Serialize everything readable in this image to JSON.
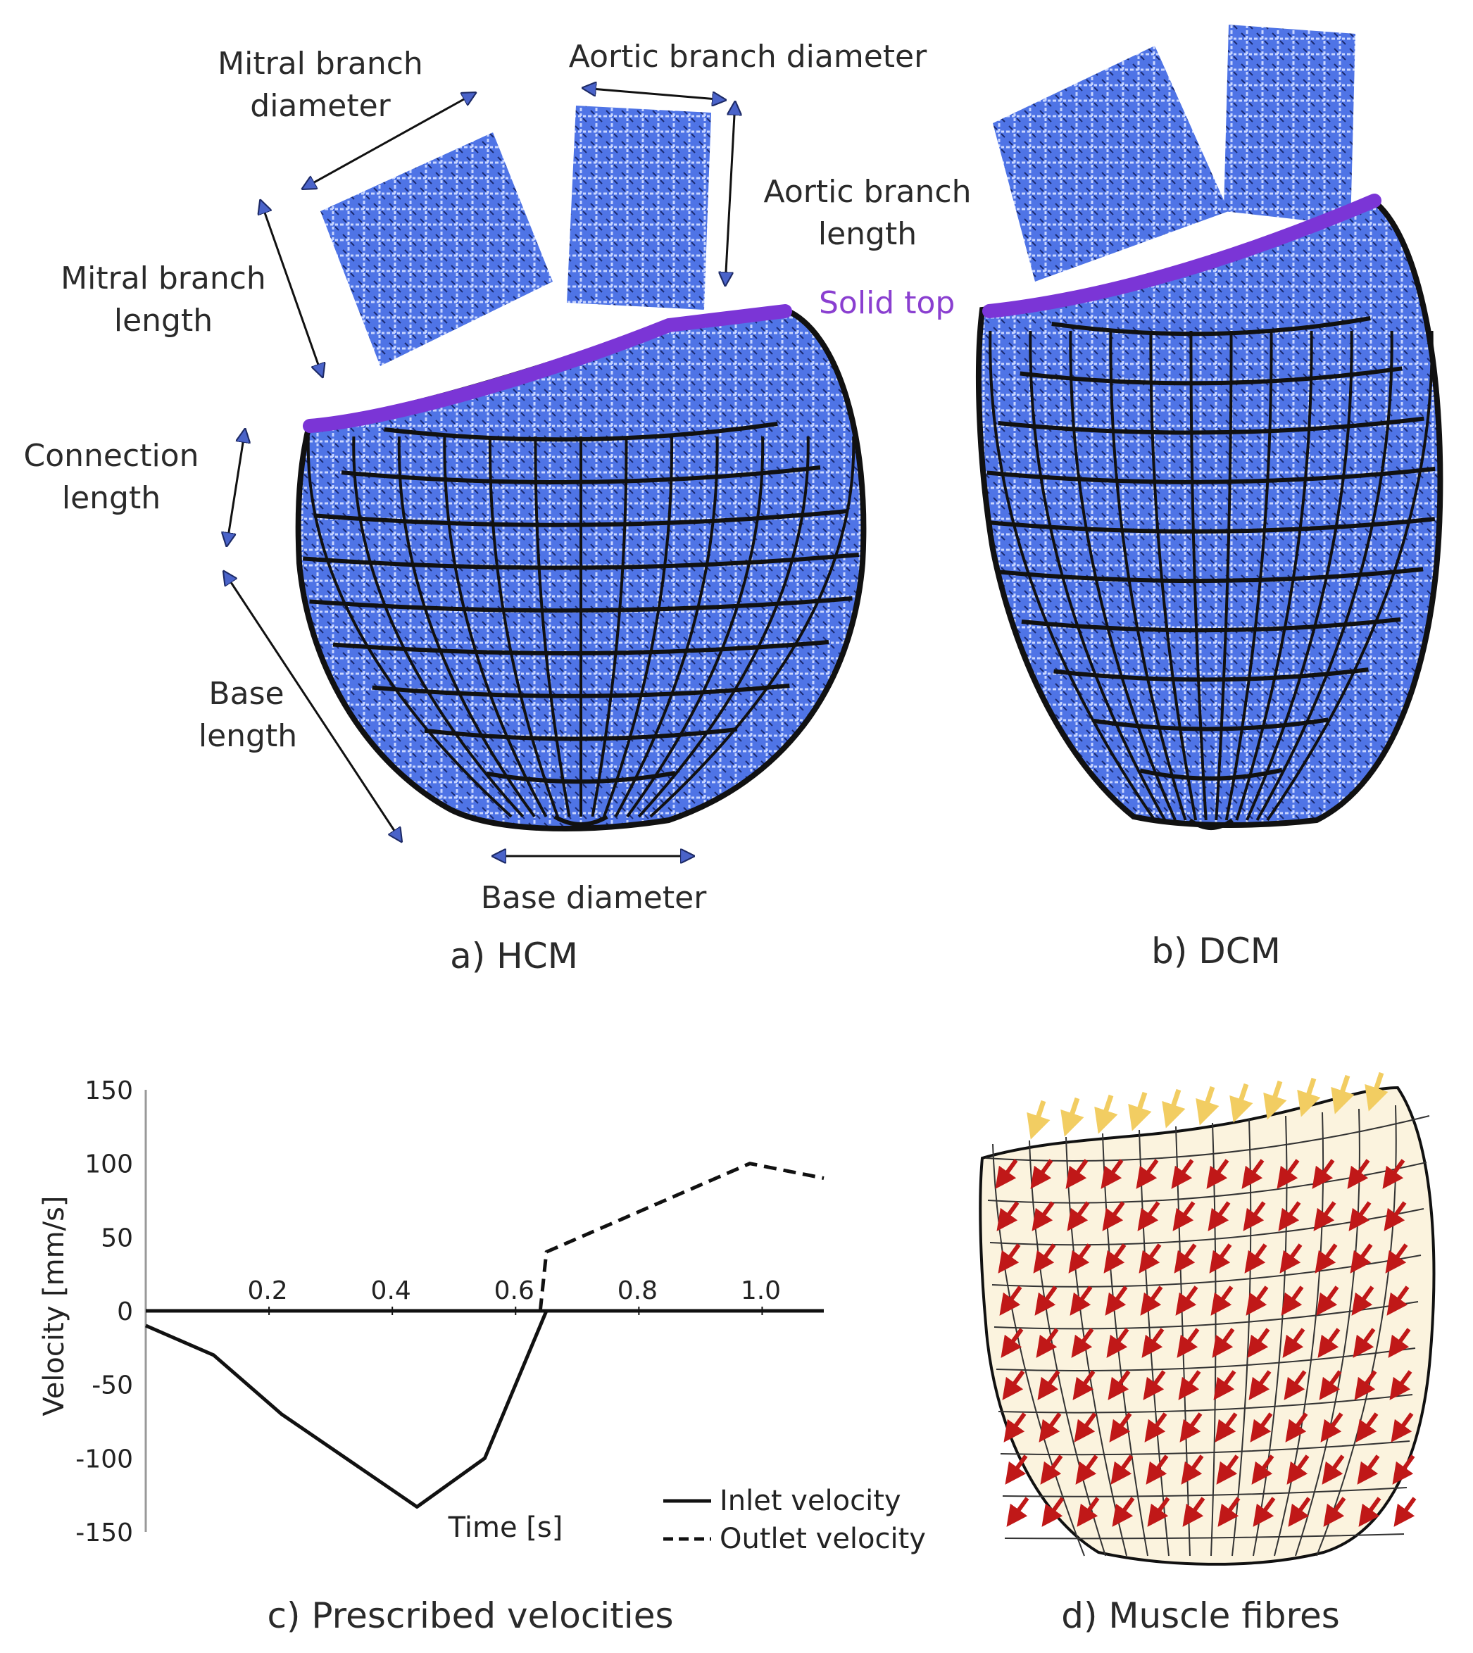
{
  "colors": {
    "mesh_blue": "#4f74e6",
    "wire_black": "#111111",
    "solid_top": "#7b35d6",
    "arrow_fill": "#4a63c9",
    "fibre_red": "#c01818",
    "fibre_yellow": "#f2cd62"
  },
  "panel_a": {
    "caption": "a) HCM",
    "labels": {
      "mitral_diameter_1": "Mitral branch",
      "mitral_diameter_2": "diameter",
      "aortic_diameter": "Aortic branch diameter",
      "aortic_length_1": "Aortic branch",
      "aortic_length_2": "length",
      "mitral_length_1": "Mitral branch",
      "mitral_length_2": "length",
      "solid_top": "Solid top",
      "connection_length_1": "Connection",
      "connection_length_2": "length",
      "base_length_1": "Base",
      "base_length_2": "length",
      "base_diameter": "Base diameter"
    }
  },
  "panel_b": {
    "caption": "b) DCM"
  },
  "panel_c": {
    "caption": "c) Prescribed velocities"
  },
  "panel_d": {
    "caption": "d) Muscle fibres"
  },
  "chart_data": {
    "type": "line",
    "xlabel": "Time [s]",
    "ylabel": "Velocity [mm/s]",
    "xlim": [
      0,
      1.1
    ],
    "ylim": [
      -150,
      150
    ],
    "x_ticks": [
      0.2,
      0.4,
      0.6,
      0.8,
      1.0
    ],
    "x_tick_labels": [
      "0.2",
      "0.4",
      "0.6",
      "0.8",
      "1.0"
    ],
    "y_ticks": [
      150,
      100,
      50,
      0,
      -50,
      -100,
      -150
    ],
    "y_tick_labels": [
      "150",
      "100",
      "50",
      "0",
      "-50",
      "-100",
      "-150"
    ],
    "legend_position": "bottom-right",
    "series": [
      {
        "name": "Inlet velocity",
        "style": "solid",
        "x": [
          0,
          0.11,
          0.22,
          0.44,
          0.55,
          0.65,
          1.1
        ],
        "y": [
          -10,
          -30,
          -70,
          -133,
          -100,
          0,
          0
        ]
      },
      {
        "name": "Outlet velocity",
        "style": "dashed",
        "x": [
          0,
          0.64,
          0.65,
          0.98,
          1.1
        ],
        "y": [
          0,
          0,
          40,
          100,
          90
        ]
      }
    ]
  }
}
